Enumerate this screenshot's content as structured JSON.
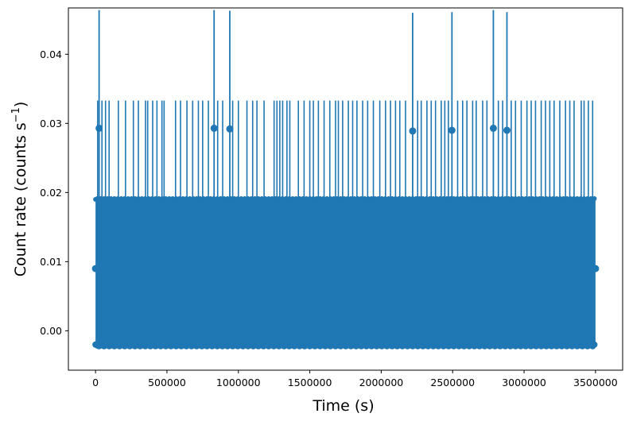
{
  "chart_data": {
    "type": "scatter",
    "title": "",
    "xlabel": "Time (s)",
    "ylabel_main": "Count rate (counts s",
    "ylabel_sup": "−1",
    "ylabel_close": ")",
    "xlim": [
      -190000,
      3690000
    ],
    "ylim": [
      -0.0057,
      0.0467
    ],
    "x_ticks": [
      0,
      500000,
      1000000,
      1500000,
      2000000,
      2500000,
      3000000,
      3500000
    ],
    "x_tick_labels": [
      "0",
      "500000",
      "1000000",
      "1500000",
      "2000000",
      "2500000",
      "3000000",
      "3500000"
    ],
    "y_ticks": [
      0.0,
      0.01,
      0.02,
      0.03,
      0.04
    ],
    "y_tick_labels": [
      "0.00",
      "0.01",
      "0.02",
      "0.03",
      "0.04"
    ],
    "series_color": "#1f77b4",
    "marker": "circle",
    "error_bars": true,
    "x_range": [
      0,
      3500000
    ],
    "band": {
      "low": -0.002,
      "high": 0.019
    },
    "typical_rate": 0.009,
    "typical_error": 0.01,
    "spike_points": [
      {
        "x": 25000,
        "y": 0.0293,
        "err": 0.0171
      },
      {
        "x": 830000,
        "y": 0.0293,
        "err": 0.0171
      },
      {
        "x": 940000,
        "y": 0.0292,
        "err": 0.0171
      },
      {
        "x": 2220000,
        "y": 0.0289,
        "err": 0.0171
      },
      {
        "x": 2495000,
        "y": 0.029,
        "err": 0.0171
      },
      {
        "x": 2785000,
        "y": 0.0293,
        "err": 0.0171
      },
      {
        "x": 2880000,
        "y": 0.029,
        "err": 0.0171
      }
    ],
    "secondary_spike_rate": 0.0257,
    "secondary_spike_error": 0.0076,
    "secondary_spike_times": [
      15000,
      45000,
      70000,
      95000,
      160000,
      210000,
      265000,
      300000,
      350000,
      365000,
      400000,
      430000,
      465000,
      480000,
      560000,
      595000,
      640000,
      680000,
      720000,
      750000,
      790000,
      855000,
      890000,
      960000,
      1000000,
      1060000,
      1100000,
      1130000,
      1180000,
      1250000,
      1270000,
      1290000,
      1310000,
      1340000,
      1360000,
      1420000,
      1460000,
      1500000,
      1525000,
      1560000,
      1600000,
      1640000,
      1680000,
      1700000,
      1730000,
      1770000,
      1800000,
      1830000,
      1870000,
      1905000,
      1945000,
      1990000,
      2030000,
      2065000,
      2100000,
      2130000,
      2170000,
      2255000,
      2280000,
      2320000,
      2350000,
      2380000,
      2420000,
      2445000,
      2470000,
      2535000,
      2570000,
      2600000,
      2640000,
      2665000,
      2710000,
      2740000,
      2820000,
      2850000,
      2910000,
      2940000,
      2980000,
      3020000,
      3050000,
      3080000,
      3120000,
      3150000,
      3180000,
      3210000,
      3250000,
      3290000,
      3320000,
      3350000,
      3400000,
      3420000,
      3450000,
      3480000
    ]
  }
}
